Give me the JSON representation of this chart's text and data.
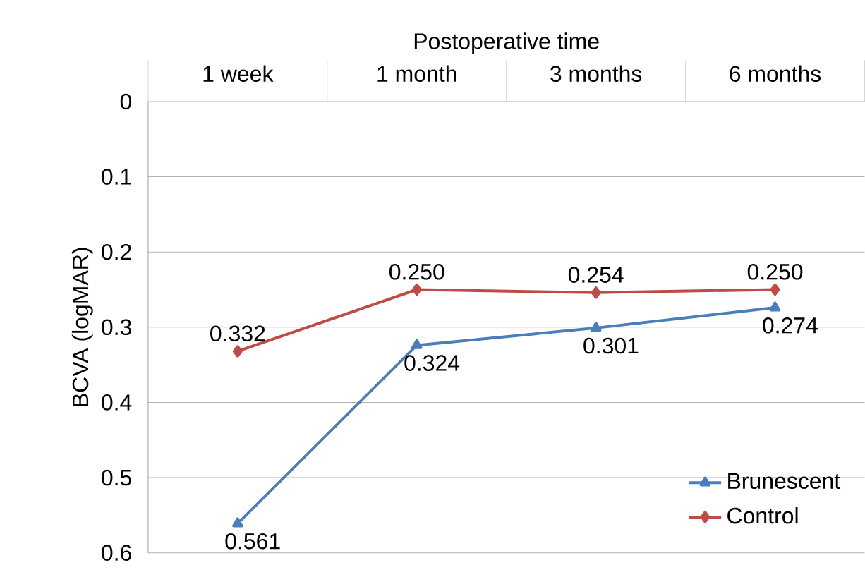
{
  "chart_data": {
    "type": "line",
    "xlabel": "Postoperative time",
    "ylabel": "BCVA (logMAR)",
    "categories": [
      "1 week",
      "1 month",
      "3 months",
      "6 months"
    ],
    "series": [
      {
        "name": "Brunescent",
        "color": "#4a7ebb",
        "marker": "triangle",
        "values": [
          0.561,
          0.324,
          0.301,
          0.274
        ],
        "value_labels": [
          "0.561",
          "0.324",
          "0.301",
          "0.274"
        ]
      },
      {
        "name": "Control",
        "color": "#be4b48",
        "marker": "diamond",
        "values": [
          0.332,
          0.25,
          0.254,
          0.25
        ],
        "value_labels": [
          "0.332",
          "0.250",
          "0.254",
          "0.250"
        ]
      }
    ],
    "ylim": [
      0.6,
      0
    ],
    "yticks": [
      0,
      0.1,
      0.2,
      0.3,
      0.4,
      0.5,
      0.6
    ],
    "grid": "y",
    "legend": "bottom right",
    "line_style": "solid"
  }
}
